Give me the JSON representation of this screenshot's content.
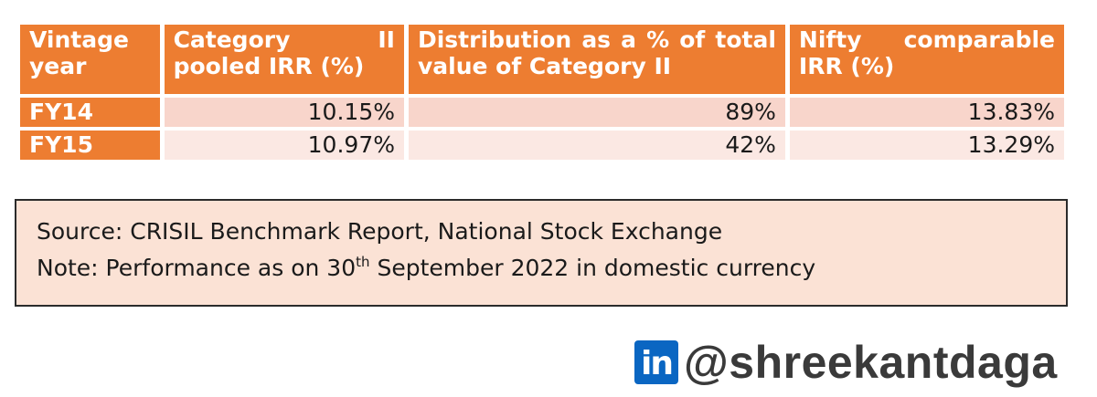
{
  "table": {
    "headers": [
      "Vintage year",
      "Category II pooled IRR (%)",
      "Distribution as a % of total value of Category II",
      "Nifty comparable IRR (%)"
    ],
    "rows": [
      {
        "year": "FY14",
        "pooled_irr": "10.15%",
        "distribution": "89%",
        "nifty_irr": "13.83%"
      },
      {
        "year": "FY15",
        "pooled_irr": "10.97%",
        "distribution": "42%",
        "nifty_irr": "13.29%"
      }
    ]
  },
  "notes": {
    "source": "Source: CRISIL Benchmark Report, National Stock Exchange",
    "note_prefix": "Note: Performance as on 30",
    "note_sup": "th",
    "note_suffix": " September 2022 in domestic currency"
  },
  "brand": {
    "logo_text": "in",
    "handle": "@shreekantdaga"
  },
  "colors": {
    "header_orange": "#ed7d31",
    "row1_fill": "#f8d5cb",
    "row2_fill": "#fbe8e3",
    "note_fill": "#fbe2d5",
    "linkedin_blue": "#0a66c2"
  }
}
